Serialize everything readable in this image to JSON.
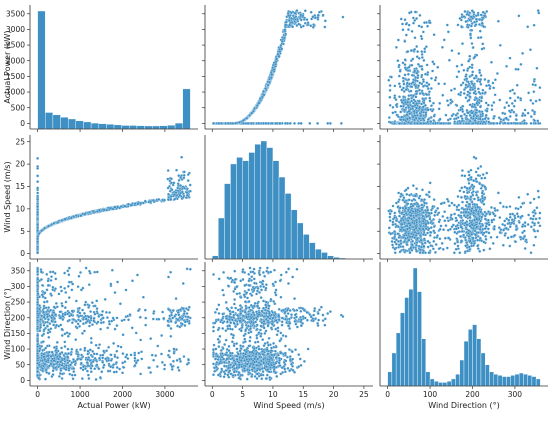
{
  "chart_data": {
    "type": "scatter",
    "subtype": "pairplot",
    "variables": [
      {
        "key": "power",
        "label": "Actual Power (kW)",
        "lim": [
          -180,
          3780
        ],
        "ticks": [
          0,
          1000,
          2000,
          3000
        ]
      },
      {
        "key": "speed",
        "label": "Wind Speed (m/s)",
        "lim": [
          -1.2,
          26.5
        ],
        "ticks": [
          0,
          5,
          10,
          15,
          20,
          25
        ]
      },
      {
        "key": "direction",
        "label": "Wind Direction (°)",
        "lim": [
          -18,
          378
        ],
        "ticks": [
          0,
          100,
          200,
          300
        ]
      }
    ],
    "y_ticks": {
      "power": [
        0,
        500,
        1000,
        1500,
        2000,
        2500,
        3000,
        3500
      ],
      "speed": [
        0,
        5,
        10,
        15,
        20,
        25
      ],
      "direction": [
        0,
        50,
        100,
        150,
        200,
        250,
        300,
        350
      ]
    },
    "color": "#3d8fc4",
    "edge_color": "#ffffff",
    "diagonal": {
      "power": {
        "type": "histogram",
        "bin_edges": [
          0,
          180,
          360,
          540,
          720,
          900,
          1080,
          1260,
          1440,
          1620,
          1800,
          1980,
          2160,
          2340,
          2520,
          2700,
          2880,
          3060,
          3240,
          3420,
          3600
        ],
        "counts": [
          100,
          14,
          12,
          10,
          8.5,
          7,
          6,
          5,
          4.5,
          4,
          3.5,
          3,
          3,
          2.8,
          2.6,
          2.6,
          2.8,
          3.2,
          5,
          34
        ]
      },
      "speed": {
        "type": "histogram",
        "bin_edges": [
          0,
          1,
          2,
          3,
          4,
          5,
          6,
          7,
          8,
          9,
          10,
          11,
          12,
          13,
          14,
          15,
          16,
          17,
          18,
          19,
          20,
          21,
          22,
          23,
          24,
          25
        ],
        "counts": [
          2,
          25,
          46,
          58,
          62,
          60,
          65,
          70,
          72,
          68,
          60,
          50,
          40,
          30,
          22,
          15,
          10,
          6,
          4,
          2,
          1,
          0.6,
          0.3,
          0.2,
          0.1
        ]
      },
      "direction": {
        "type": "histogram",
        "bin_edges": [
          0,
          10,
          20,
          30,
          40,
          50,
          60,
          70,
          80,
          90,
          100,
          110,
          120,
          130,
          140,
          150,
          160,
          170,
          180,
          190,
          200,
          210,
          220,
          230,
          240,
          250,
          260,
          270,
          280,
          290,
          300,
          310,
          320,
          330,
          340,
          350,
          360
        ],
        "counts": [
          12,
          28,
          45,
          62,
          75,
          82,
          100,
          80,
          40,
          12,
          6,
          4,
          3,
          3,
          4,
          6,
          10,
          22,
          38,
          48,
          52,
          40,
          28,
          18,
          12,
          10,
          9,
          8,
          8,
          9,
          10,
          11,
          10,
          9,
          8,
          6
        ]
      }
    }
  }
}
